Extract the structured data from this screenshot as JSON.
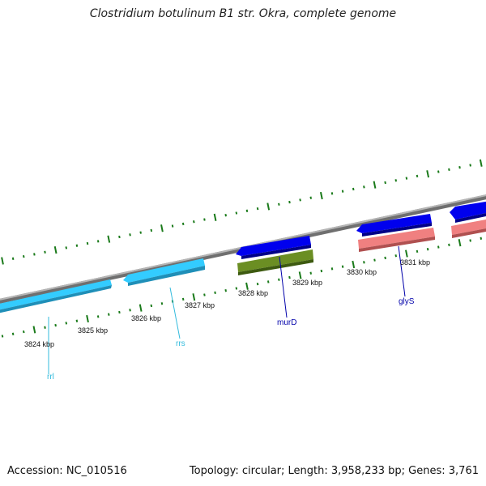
{
  "title": "Clostridium botulinum B1 str. Okra, complete genome",
  "accession": "Accession: NC_010516",
  "genome_info": "Topology: circular; Length: 3,958,233 bp; Genes: 3,761",
  "kbp_labels": [
    "3824 kbp",
    "3825 kbp",
    "3826 kbp",
    "3827 kbp",
    "3828 kbp",
    "3829 kbp",
    "3830 kbp",
    "3831 kbp"
  ],
  "gene_labels": [
    {
      "text": "rrl",
      "color": "#33bbdd"
    },
    {
      "text": "rrs",
      "color": "#33bbdd"
    },
    {
      "text": "murD",
      "color": "#0000aa"
    },
    {
      "text": "glyS",
      "color": "#0000aa"
    }
  ],
  "colors": {
    "backbone": "#8c8c8c",
    "rrna": "#33ccff",
    "cds_blue": "#0000ee",
    "cds_green": "#6b8e23",
    "cds_pink": "#f08080",
    "ticks": "#1a7a1a"
  }
}
